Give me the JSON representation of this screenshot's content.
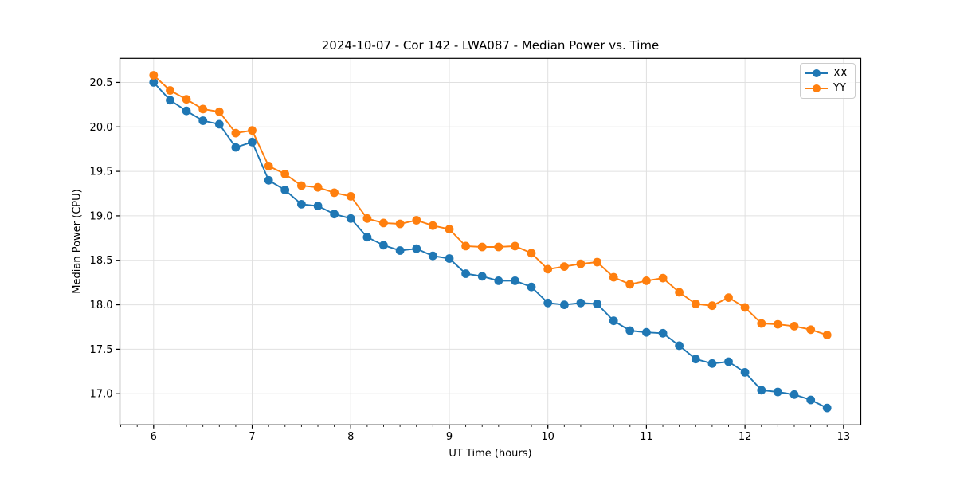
{
  "chart_data": {
    "type": "line",
    "title": "2024-10-07 - Cor 142 - LWA087 - Median Power vs. Time",
    "xlabel": "UT Time (hours)",
    "ylabel": "Median Power (CPU)",
    "xlim": [
      5.658,
      13.175
    ],
    "ylim": [
      16.65,
      20.77
    ],
    "xticks": [
      6,
      7,
      8,
      9,
      10,
      11,
      12,
      13
    ],
    "yticks": [
      17.0,
      17.5,
      18.0,
      18.5,
      19.0,
      19.5,
      20.0,
      20.5
    ],
    "x_minor_step": 0.166667,
    "grid": true,
    "legend_position": "upper right",
    "marker": "o",
    "x": [
      6.0,
      6.167,
      6.333,
      6.5,
      6.667,
      6.833,
      7.0,
      7.167,
      7.333,
      7.5,
      7.667,
      7.833,
      8.0,
      8.167,
      8.333,
      8.5,
      8.667,
      8.833,
      9.0,
      9.167,
      9.333,
      9.5,
      9.667,
      9.833,
      10.0,
      10.167,
      10.333,
      10.5,
      10.667,
      10.833,
      11.0,
      11.167,
      11.333,
      11.5,
      11.667,
      11.833,
      12.0,
      12.167,
      12.333,
      12.5,
      12.667,
      12.833
    ],
    "series": [
      {
        "name": "XX",
        "color": "#1f77b4",
        "values": [
          20.5,
          20.3,
          20.18,
          20.07,
          20.03,
          19.77,
          19.83,
          19.4,
          19.29,
          19.13,
          19.11,
          19.02,
          18.97,
          18.76,
          18.67,
          18.61,
          18.63,
          18.55,
          18.52,
          18.35,
          18.32,
          18.27,
          18.27,
          18.2,
          18.02,
          18.0,
          18.02,
          18.01,
          17.82,
          17.71,
          17.69,
          17.68,
          17.54,
          17.39,
          17.34,
          17.36,
          17.24,
          17.04,
          17.02,
          16.99,
          16.93,
          16.84
        ]
      },
      {
        "name": "YY",
        "color": "#ff7f0e",
        "values": [
          20.58,
          20.41,
          20.31,
          20.2,
          20.17,
          19.93,
          19.96,
          19.56,
          19.47,
          19.34,
          19.32,
          19.26,
          19.22,
          18.97,
          18.92,
          18.91,
          18.95,
          18.89,
          18.85,
          18.66,
          18.65,
          18.65,
          18.66,
          18.58,
          18.4,
          18.43,
          18.46,
          18.48,
          18.31,
          18.23,
          18.27,
          18.3,
          18.14,
          18.01,
          17.99,
          18.08,
          17.97,
          17.79,
          17.78,
          17.76,
          17.72,
          17.66
        ]
      }
    ]
  },
  "style": {
    "grid_color": "#e0e0e0",
    "spine_color": "#000000",
    "background_color": "#ffffff"
  }
}
